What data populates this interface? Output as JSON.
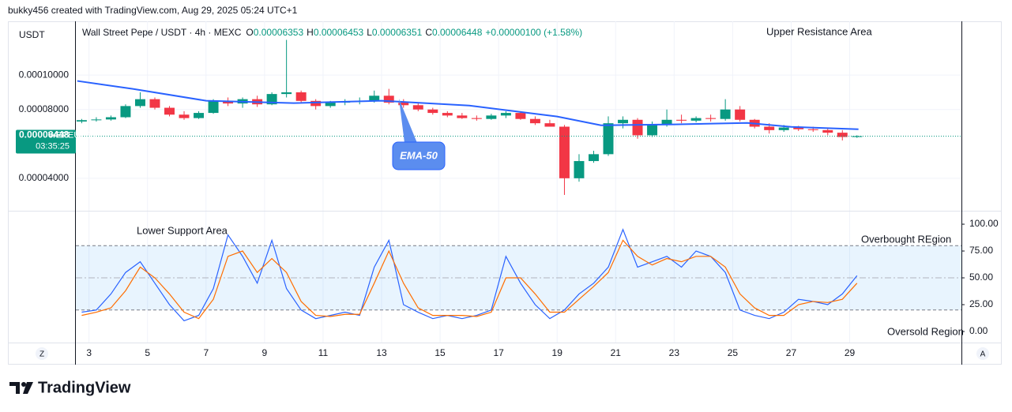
{
  "header": {
    "credit": "bukky456 created with TradingView.com, Aug 29, 2025 05:24 UTC+1"
  },
  "footer": {
    "brand": "TradingView"
  },
  "chart_data": [
    {
      "type": "candlestick",
      "currency": "USDT",
      "symbol": "Wall Street Pepe / USDT · 4h · MEXC",
      "ohlc": [
        {
          "label": "O",
          "value": "0.00006353"
        },
        {
          "label": "H",
          "value": "0.00006453"
        },
        {
          "label": "L",
          "value": "0.00006351"
        },
        {
          "label": "C",
          "value": "0.00006448"
        }
      ],
      "change": "+0.00000100 (+1.58%)",
      "annotations": [
        "Upper Resistance Area"
      ],
      "up_color": "#089981",
      "down_color": "#f23645",
      "x": [
        2.75,
        3.25,
        3.75,
        4.25,
        4.75,
        5.25,
        5.75,
        6.25,
        6.75,
        7.25,
        7.75,
        8.25,
        8.75,
        9.25,
        9.75,
        10.25,
        10.75,
        11.25,
        11.75,
        12.25,
        12.75,
        13.25,
        13.75,
        14.25,
        14.75,
        15.25,
        15.75,
        16.25,
        16.75,
        17.25,
        17.75,
        18.25,
        18.75,
        19.25,
        19.75,
        20.25,
        20.75,
        21.25,
        21.75,
        22.25,
        22.75,
        23.25,
        23.75,
        24.25,
        24.75,
        25.25,
        25.75,
        26.25,
        26.75,
        27.25,
        27.75,
        28.25,
        28.75,
        29.25
      ],
      "open": [
        7.3e-05,
        7.38e-05,
        7.42e-05,
        7.55e-05,
        8.2e-05,
        8.6e-05,
        8.1e-05,
        7.7e-05,
        7.5e-05,
        7.8e-05,
        8.5e-05,
        8.35e-05,
        8.6e-05,
        8.3e-05,
        8.9e-05,
        9e-05,
        8.5e-05,
        8.2e-05,
        8.4e-05,
        8.45e-05,
        8.5e-05,
        8.8e-05,
        8.4e-05,
        8.25e-05,
        8e-05,
        7.8e-05,
        7.65e-05,
        7.5e-05,
        7.45e-05,
        7.65e-05,
        7.8e-05,
        7.45e-05,
        7.2e-05,
        7e-05,
        4e-05,
        5e-05,
        5.4e-05,
        7.2e-05,
        7.4e-05,
        6.5e-05,
        7.1e-05,
        7.4e-05,
        7.35e-05,
        7.5e-05,
        7.45e-05,
        8e-05,
        7.4e-05,
        7e-05,
        6.8e-05,
        6.95e-05,
        6.85e-05,
        6.8e-05,
        6.65e-05,
        6.4e-05
      ],
      "high": [
        7.45e-05,
        7.55e-05,
        7.65e-05,
        8.3e-05,
        9e-05,
        8.7e-05,
        8.2e-05,
        7.9e-05,
        7.9e-05,
        8.6e-05,
        8.7e-05,
        8.7e-05,
        8.8e-05,
        9e-05,
        0.0001205,
        9.1e-05,
        8.6e-05,
        8.5e-05,
        8.6e-05,
        8.7e-05,
        9.1e-05,
        9.2e-05,
        8.6e-05,
        8.4e-05,
        8.1e-05,
        7.9e-05,
        7.8e-05,
        7.65e-05,
        7.75e-05,
        7.9e-05,
        7.9e-05,
        7.6e-05,
        7.4e-05,
        7.1e-05,
        5.4e-05,
        5.6e-05,
        7.6e-05,
        7.6e-05,
        7.5e-05,
        7.3e-05,
        8e-05,
        7.7e-05,
        7.6e-05,
        7.7e-05,
        8.6e-05,
        8.2e-05,
        7.45e-05,
        7.2e-05,
        7.1e-05,
        7.05e-05,
        7e-05,
        6.9e-05,
        6.8e-05,
        6.5e-05
      ],
      "low": [
        7.2e-05,
        7.3e-05,
        7.35e-05,
        7.5e-05,
        8.1e-05,
        8e-05,
        7.6e-05,
        7.4e-05,
        7.45e-05,
        7.75e-05,
        8.2e-05,
        8.1e-05,
        8.15e-05,
        8.25e-05,
        8.7e-05,
        8.4e-05,
        8e-05,
        8.1e-05,
        8.25e-05,
        8.3e-05,
        8.4e-05,
        8.3e-05,
        8.1e-05,
        7.9e-05,
        7.7e-05,
        7.55e-05,
        7.45e-05,
        7.35e-05,
        7.4e-05,
        7.5e-05,
        7.4e-05,
        7.1e-05,
        7e-05,
        3.03e-05,
        3.8e-05,
        4.9e-05,
        5.3e-05,
        6.9e-05,
        6.3e-05,
        6.4e-05,
        7e-05,
        7.2e-05,
        7.25e-05,
        7.3e-05,
        7.35e-05,
        7.3e-05,
        6.9e-05,
        6.6e-05,
        6.7e-05,
        6.75e-05,
        6.7e-05,
        6.5e-05,
        6.2e-05,
        6.35e-05
      ],
      "close": [
        7.38e-05,
        7.42e-05,
        7.55e-05,
        8.2e-05,
        8.6e-05,
        8.1e-05,
        7.7e-05,
        7.5e-05,
        7.8e-05,
        8.5e-05,
        8.35e-05,
        8.6e-05,
        8.3e-05,
        8.9e-05,
        9e-05,
        8.5e-05,
        8.2e-05,
        8.4e-05,
        8.45e-05,
        8.5e-05,
        8.8e-05,
        8.4e-05,
        8.25e-05,
        8e-05,
        7.8e-05,
        7.65e-05,
        7.5e-05,
        7.45e-05,
        7.65e-05,
        7.8e-05,
        7.45e-05,
        7.2e-05,
        7e-05,
        4e-05,
        5e-05,
        5.4e-05,
        7.2e-05,
        7.4e-05,
        6.5e-05,
        7.1e-05,
        7.4e-05,
        7.35e-05,
        7.5e-05,
        7.45e-05,
        8e-05,
        7.4e-05,
        7e-05,
        6.8e-05,
        6.95e-05,
        6.85e-05,
        6.8e-05,
        6.65e-05,
        6.4e-05,
        6.45e-05
      ],
      "ema": {
        "label": "EMA-50",
        "color": "#2962ff",
        "x": [
          2.6,
          4.5,
          7,
          10,
          13,
          16,
          19,
          20.5,
          23,
          25.5,
          27,
          29.3
        ],
        "values": [
          9.66e-05,
          9.2e-05,
          8.51e-05,
          8.37e-05,
          8.51e-05,
          8.23e-05,
          7.59e-05,
          7.08e-05,
          7.13e-05,
          7.22e-05,
          6.99e-05,
          6.85e-05
        ]
      },
      "last_price": {
        "value": 6.448e-05,
        "label": "0.00006448"
      },
      "last_price_symbol": "WEPEUSDT",
      "countdown": "03:35:25",
      "xlim": [
        2.55,
        32.82
      ],
      "xticks": [
        3,
        5,
        7,
        9,
        11,
        13,
        15,
        17,
        19,
        21,
        23,
        25,
        27,
        29
      ],
      "ylim": [
        2.11e-05,
        0.0001313
      ],
      "yticks": [
        {
          "value": 4e-05,
          "label": "0.00004000"
        },
        {
          "value": 8e-05,
          "label": "0.00008000"
        },
        {
          "value": 0.0001,
          "label": "0.00010000"
        }
      ],
      "grid": true,
      "axis_buttons": [
        "Z",
        "A"
      ]
    },
    {
      "type": "line",
      "annotations": [
        "Lower Support Area",
        "Overbought REgion",
        "Oversold Region"
      ],
      "x": [
        2.75,
        3.25,
        3.75,
        4.25,
        4.75,
        5.25,
        5.75,
        6.25,
        6.75,
        7.25,
        7.75,
        8.25,
        8.75,
        9.25,
        9.75,
        10.25,
        10.75,
        11.25,
        11.75,
        12.25,
        12.75,
        13.25,
        13.75,
        14.25,
        14.75,
        15.25,
        15.75,
        16.25,
        16.75,
        17.25,
        17.75,
        18.25,
        18.75,
        19.25,
        19.75,
        20.25,
        20.75,
        21.25,
        21.75,
        22.25,
        22.75,
        23.25,
        23.75,
        24.25,
        24.75,
        25.25,
        25.75,
        26.25,
        26.75,
        27.25,
        27.75,
        28.25,
        28.75,
        29.25
      ],
      "series": [
        {
          "color": "#2962ff",
          "values": [
            18,
            20,
            35,
            55,
            65,
            45,
            25,
            10,
            15,
            40,
            90,
            70,
            45,
            85,
            40,
            20,
            12,
            15,
            18,
            15,
            60,
            85,
            25,
            18,
            12,
            15,
            12,
            15,
            20,
            70,
            45,
            25,
            12,
            20,
            35,
            45,
            60,
            95,
            60,
            65,
            70,
            60,
            75,
            70,
            55,
            20,
            15,
            12,
            18,
            30,
            28,
            25,
            35,
            52
          ]
        },
        {
          "color": "#ff6d00",
          "values": [
            15,
            18,
            22,
            38,
            60,
            50,
            35,
            18,
            12,
            30,
            70,
            75,
            55,
            68,
            55,
            28,
            15,
            14,
            16,
            16,
            45,
            75,
            45,
            22,
            15,
            15,
            15,
            14,
            18,
            50,
            50,
            35,
            18,
            18,
            30,
            42,
            55,
            85,
            70,
            62,
            68,
            65,
            70,
            70,
            60,
            35,
            22,
            15,
            15,
            25,
            28,
            27,
            30,
            45
          ]
        }
      ],
      "bands": [
        20,
        80
      ],
      "midline": 50,
      "band_color": "#2196f3",
      "xlim": [
        2.55,
        32.82
      ],
      "ylim": [
        -10.3,
        111.8
      ],
      "yticks": [
        {
          "value": 0,
          "label": "0.00"
        },
        {
          "value": 25,
          "label": "25.00"
        },
        {
          "value": 50,
          "label": "50.00"
        },
        {
          "value": 75,
          "label": "75.00"
        },
        {
          "value": 100,
          "label": "100.00"
        }
      ]
    }
  ]
}
